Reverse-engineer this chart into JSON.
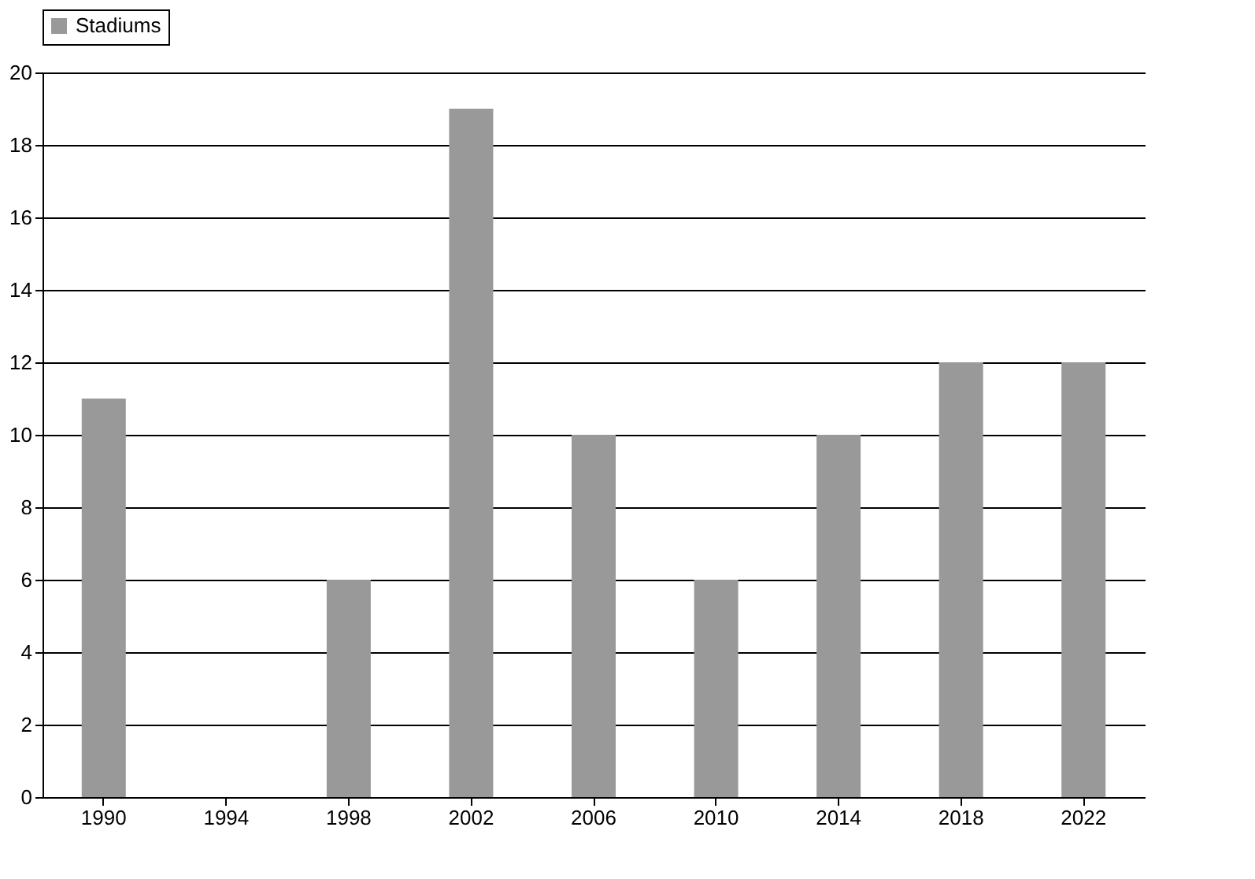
{
  "chart_data": {
    "type": "bar",
    "categories": [
      "1990",
      "1994",
      "1998",
      "2002",
      "2006",
      "2010",
      "2014",
      "2018",
      "2022"
    ],
    "series": [
      {
        "name": "Stadiums",
        "color": "#999999",
        "values": [
          11,
          0,
          6,
          19,
          10,
          6,
          10,
          12,
          12
        ]
      }
    ],
    "ylim": [
      0,
      20
    ],
    "yticks": [
      0,
      2,
      4,
      6,
      8,
      10,
      12,
      14,
      16,
      18,
      20
    ],
    "grid": "y",
    "legend": "top"
  }
}
